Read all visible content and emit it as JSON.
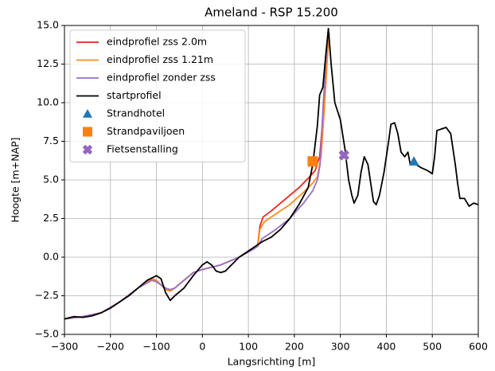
{
  "chart_data": {
    "type": "line",
    "title": "Ameland - RSP 15.200",
    "xlabel": "Langsrichting [m]",
    "ylabel": "Hoogte [m+NAP]",
    "xlim": [
      -300,
      600
    ],
    "ylim": [
      -5,
      15
    ],
    "xticks": [
      {
        "value": -300,
        "label": "−300"
      },
      {
        "value": -200,
        "label": "−200"
      },
      {
        "value": -100,
        "label": "−100"
      },
      0,
      100,
      200,
      300,
      400,
      500,
      600
    ],
    "yticks": [
      {
        "value": -5,
        "label": "−5.0"
      },
      {
        "value": -2.5,
        "label": "−2.5"
      },
      {
        "value": 0,
        "label": "0.0"
      },
      {
        "value": 2.5,
        "label": "2.5"
      },
      {
        "value": 5,
        "label": "5.0"
      },
      {
        "value": 7.5,
        "label": "7.5"
      },
      {
        "value": 10,
        "label": "10.0"
      },
      {
        "value": 12.5,
        "label": "12.5"
      },
      {
        "value": 15,
        "label": "15.0"
      }
    ],
    "grid": true,
    "legend": "upper left",
    "series": [
      {
        "name": "eindprofiel zss 2.0m",
        "color": "#e8261f",
        "x": [
          -300,
          -260,
          -220,
          -180,
          -140,
          -110,
          -100,
          -80,
          -70,
          -60,
          -40,
          -20,
          0,
          40,
          80,
          110,
          120,
          125,
          132,
          150,
          170,
          190,
          210,
          230,
          245,
          255,
          262,
          268,
          274
        ],
        "values": [
          -4.0,
          -3.85,
          -3.6,
          -2.9,
          -2.0,
          -1.4,
          -1.5,
          -2.1,
          -2.2,
          -2.0,
          -1.5,
          -1.0,
          -0.8,
          -0.5,
          0.0,
          0.5,
          0.7,
          2.0,
          2.6,
          3.0,
          3.5,
          4.0,
          4.5,
          5.1,
          5.6,
          6.5,
          9.0,
          12.0,
          14.8
        ]
      },
      {
        "name": "eindprofiel zss 1.21m",
        "color": "#ff8c1a",
        "x": [
          -300,
          -260,
          -220,
          -180,
          -140,
          -110,
          -100,
          -80,
          -70,
          -60,
          -40,
          -20,
          0,
          40,
          80,
          110,
          120,
          125,
          135,
          160,
          190,
          220,
          240,
          250,
          258,
          265,
          272,
          276
        ],
        "values": [
          -4.0,
          -3.85,
          -3.6,
          -2.9,
          -2.0,
          -1.4,
          -1.5,
          -2.1,
          -2.2,
          -2.0,
          -1.5,
          -1.0,
          -0.8,
          -0.5,
          0.0,
          0.5,
          0.7,
          1.8,
          2.3,
          2.8,
          3.4,
          4.2,
          4.8,
          5.2,
          6.5,
          9.5,
          13.0,
          14.5
        ]
      },
      {
        "name": "eindprofiel zonder zss",
        "color": "#9b6fc9",
        "x": [
          -300,
          -260,
          -220,
          -180,
          -140,
          -110,
          -100,
          -80,
          -70,
          -60,
          -40,
          -20,
          0,
          40,
          80,
          110,
          120,
          130,
          160,
          190,
          220,
          240,
          250,
          256,
          262,
          268,
          274
        ],
        "values": [
          -4.0,
          -3.85,
          -3.6,
          -2.9,
          -2.0,
          -1.5,
          -1.6,
          -2.0,
          -2.1,
          -2.0,
          -1.5,
          -1.0,
          -0.8,
          -0.5,
          0.0,
          0.5,
          0.7,
          1.2,
          1.8,
          2.5,
          3.5,
          4.3,
          5.0,
          6.0,
          9.5,
          12.5,
          14.8
        ]
      },
      {
        "name": "startprofiel",
        "color": "#000000",
        "x": [
          -300,
          -280,
          -260,
          -240,
          -220,
          -200,
          -180,
          -160,
          -140,
          -120,
          -100,
          -90,
          -80,
          -70,
          -60,
          -40,
          -20,
          0,
          10,
          20,
          30,
          40,
          50,
          60,
          80,
          100,
          120,
          130,
          150,
          170,
          190,
          210,
          230,
          240,
          250,
          255,
          262,
          268,
          274,
          280,
          288,
          300,
          310,
          318,
          325,
          330,
          338,
          345,
          352,
          360,
          365,
          372,
          378,
          385,
          395,
          405,
          410,
          418,
          425,
          432,
          440,
          447,
          452,
          460,
          475,
          490,
          500,
          505,
          510,
          520,
          530,
          540,
          550,
          555,
          560,
          570,
          580,
          590,
          600
        ],
        "values": [
          -4.0,
          -3.85,
          -3.9,
          -3.8,
          -3.6,
          -3.3,
          -2.9,
          -2.5,
          -2.0,
          -1.5,
          -1.2,
          -1.4,
          -2.3,
          -2.8,
          -2.5,
          -2.0,
          -1.2,
          -0.5,
          -0.3,
          -0.5,
          -0.9,
          -1.0,
          -0.9,
          -0.6,
          0.0,
          0.4,
          0.8,
          1.0,
          1.3,
          1.8,
          2.5,
          3.4,
          4.5,
          6.0,
          8.5,
          10.5,
          11.0,
          13.0,
          14.8,
          12.5,
          10.0,
          8.9,
          7.0,
          5.0,
          4.0,
          3.5,
          4.0,
          5.5,
          6.5,
          6.0,
          5.0,
          3.6,
          3.4,
          4.0,
          5.5,
          7.5,
          8.6,
          8.7,
          8.0,
          6.8,
          6.5,
          6.8,
          6.0,
          6.1,
          5.8,
          5.6,
          5.4,
          6.5,
          8.2,
          8.3,
          8.4,
          8.0,
          6.0,
          4.8,
          3.8,
          3.8,
          3.3,
          3.5,
          3.4
        ]
      }
    ],
    "markers": [
      {
        "name": "Strandhotel",
        "color": "#1f77b4",
        "marker": "triangle",
        "x": 460,
        "y": 6.2
      },
      {
        "name": "Strandpaviljoen",
        "color": "#ff7f0e",
        "marker": "square",
        "x": 240,
        "y": 6.2
      },
      {
        "name": "Fietsenstalling",
        "color": "#9467bd",
        "marker": "x",
        "x": 308,
        "y": 6.6
      }
    ]
  }
}
